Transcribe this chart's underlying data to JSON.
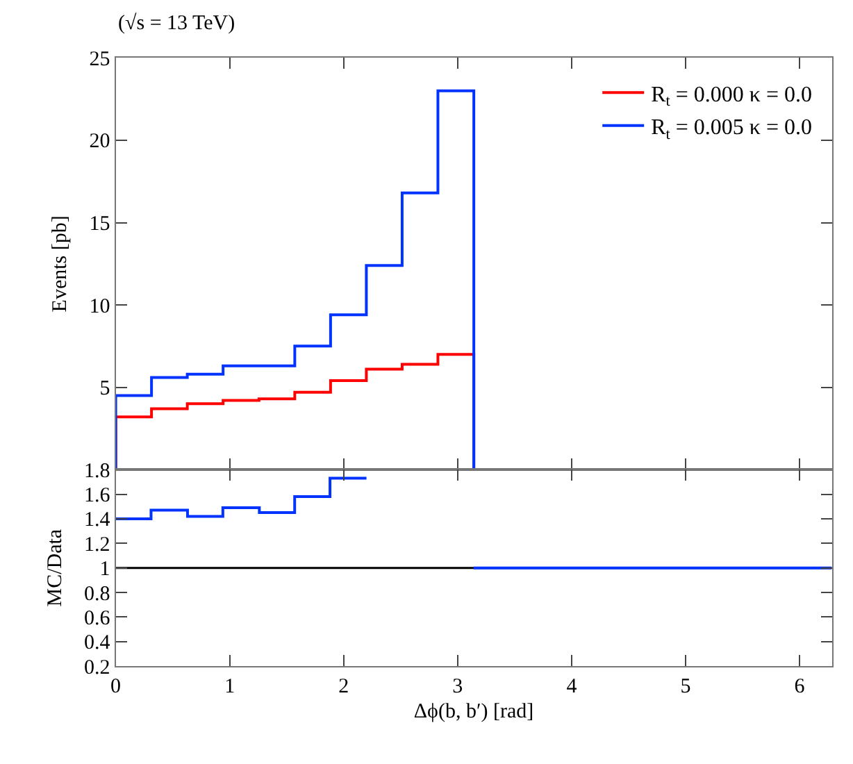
{
  "chart_data": [
    {
      "type": "histogram",
      "title": "(√s = 13 TeV)",
      "ylabel": "Events [pb]",
      "bins": [
        0,
        0.314,
        0.628,
        0.942,
        1.257,
        1.571,
        1.885,
        2.199,
        2.513,
        2.827,
        3.142
      ],
      "series": [
        {
          "name": "R$_{t}$ = 0.000 κ = 0.0",
          "color": "#ff0000",
          "values": [
            3.2,
            3.7,
            4.0,
            4.2,
            4.3,
            4.7,
            5.4,
            6.1,
            6.4,
            7.0
          ]
        },
        {
          "name": "R$_{t}$ = 0.005 κ = 0.0",
          "color": "#0033ff",
          "values": [
            4.5,
            5.6,
            5.8,
            6.3,
            6.3,
            7.5,
            9.4,
            12.4,
            16.8,
            23.0
          ]
        }
      ],
      "xlim": [
        0,
        6.283
      ],
      "xticks": [
        {
          "value": 0,
          "label": null
        },
        {
          "value": 1,
          "label": null
        },
        {
          "value": 2,
          "label": null
        },
        {
          "value": 3,
          "label": null
        },
        {
          "value": 4,
          "label": null
        },
        {
          "value": 5,
          "label": null
        },
        {
          "value": 6,
          "label": null
        }
      ],
      "ylim": [
        0,
        25
      ],
      "yticks": [
        5,
        10,
        15,
        20,
        25
      ],
      "tick_labels": "y",
      "legend": "top right",
      "grid": false
    },
    {
      "type": "step",
      "xlabel": "Δϕ(b, b′) [rad]",
      "ylabel": "MC/Data",
      "x": [
        0,
        0.31,
        0.63,
        0.94,
        1.26,
        1.57,
        1.88,
        2.2,
        2.51,
        2.83,
        3.14,
        6.28
      ],
      "series": [
        {
          "color": "#0033ff",
          "values": [
            1.4,
            1.47,
            1.42,
            1.49,
            1.45,
            1.58,
            1.73,
            null,
            null,
            null,
            1.0,
            1.0
          ]
        }
      ],
      "ref_lines": [
        {
          "axis": "y",
          "value": 1,
          "color": "#000000"
        }
      ],
      "xlim": [
        0,
        6.283
      ],
      "xticks": [
        0,
        1,
        2,
        3,
        4,
        5,
        6
      ],
      "ylim": [
        0.2,
        1.8
      ],
      "yticks": [
        0.2,
        0.4,
        0.6,
        0.8,
        {
          "value": 1,
          "label": "1"
        },
        1.2,
        1.4,
        1.6,
        1.8
      ],
      "grid": false
    }
  ]
}
